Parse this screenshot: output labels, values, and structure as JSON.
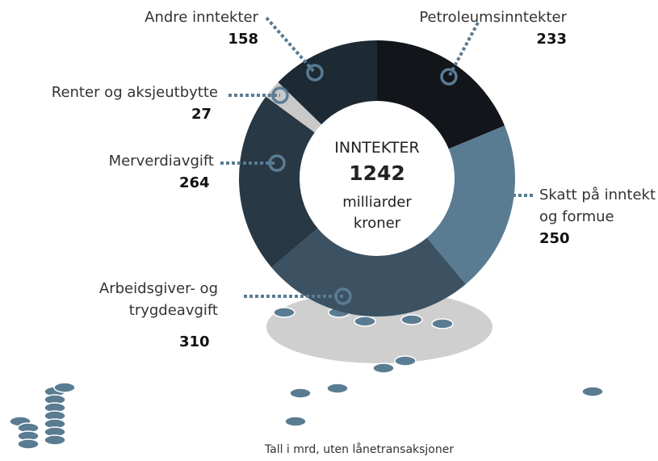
{
  "chart_data": {
    "type": "donut",
    "center_title": "INNTEKTER",
    "total": 1242,
    "center_unit": "milliarder kroner",
    "footnote": "Tall i mrd, uten lånetransaksjoner",
    "categories": [
      "Petroleumsinntekter",
      "Skatt på inntekt og formue",
      "Arbeidsgiver- og trygdeavgift",
      "Merverdiavgift",
      "Renter og aksjeutbytte",
      "Andre inntekter"
    ],
    "values": [
      233,
      250,
      310,
      264,
      27,
      158
    ],
    "colors": [
      "#121519",
      "#5a7c93",
      "#3c5263",
      "#283845",
      "#c9c9c9",
      "#1d2a34"
    ]
  }
}
